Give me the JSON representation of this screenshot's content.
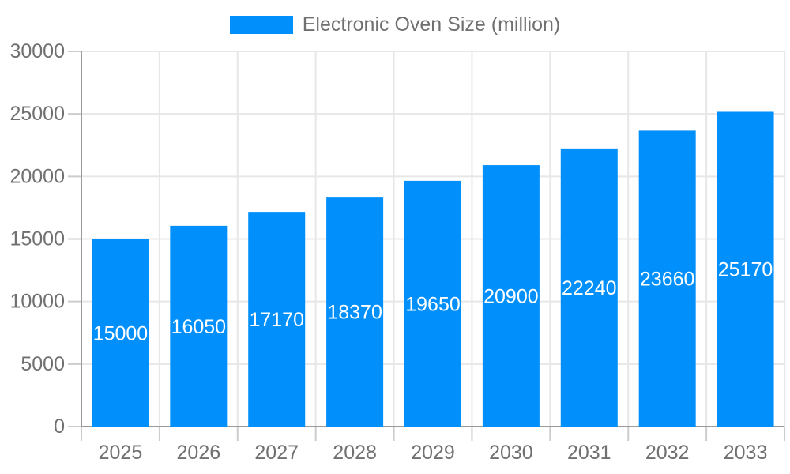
{
  "legend": {
    "label": "Electronic Oven Size (million)"
  },
  "chart_data": {
    "type": "bar",
    "title": "Electronic Oven Size (million)",
    "categories": [
      "2025",
      "2026",
      "2027",
      "2028",
      "2029",
      "2030",
      "2031",
      "2032",
      "2033"
    ],
    "series": [
      {
        "name": "Electronic Oven Size (million)",
        "values": [
          15000,
          16050,
          17170,
          18370,
          19650,
          20900,
          22240,
          23660,
          25170
        ]
      }
    ],
    "y_ticks": [
      0,
      5000,
      10000,
      15000,
      20000,
      25000,
      30000
    ],
    "ylim": [
      0,
      30000
    ],
    "xlabel": "",
    "ylabel": "",
    "grid": true,
    "legend_position": "top",
    "data_labels": "inside-center",
    "colors": {
      "bar": "#008FFB",
      "bar_label": "#FFFFFF",
      "axis_text": "#707070",
      "legend_text": "#707070",
      "grid_line": "#e7e7e7",
      "axis_line": "#9a9a9a",
      "tick_mark": "#cccccc",
      "background": "#FFFFFF"
    }
  }
}
